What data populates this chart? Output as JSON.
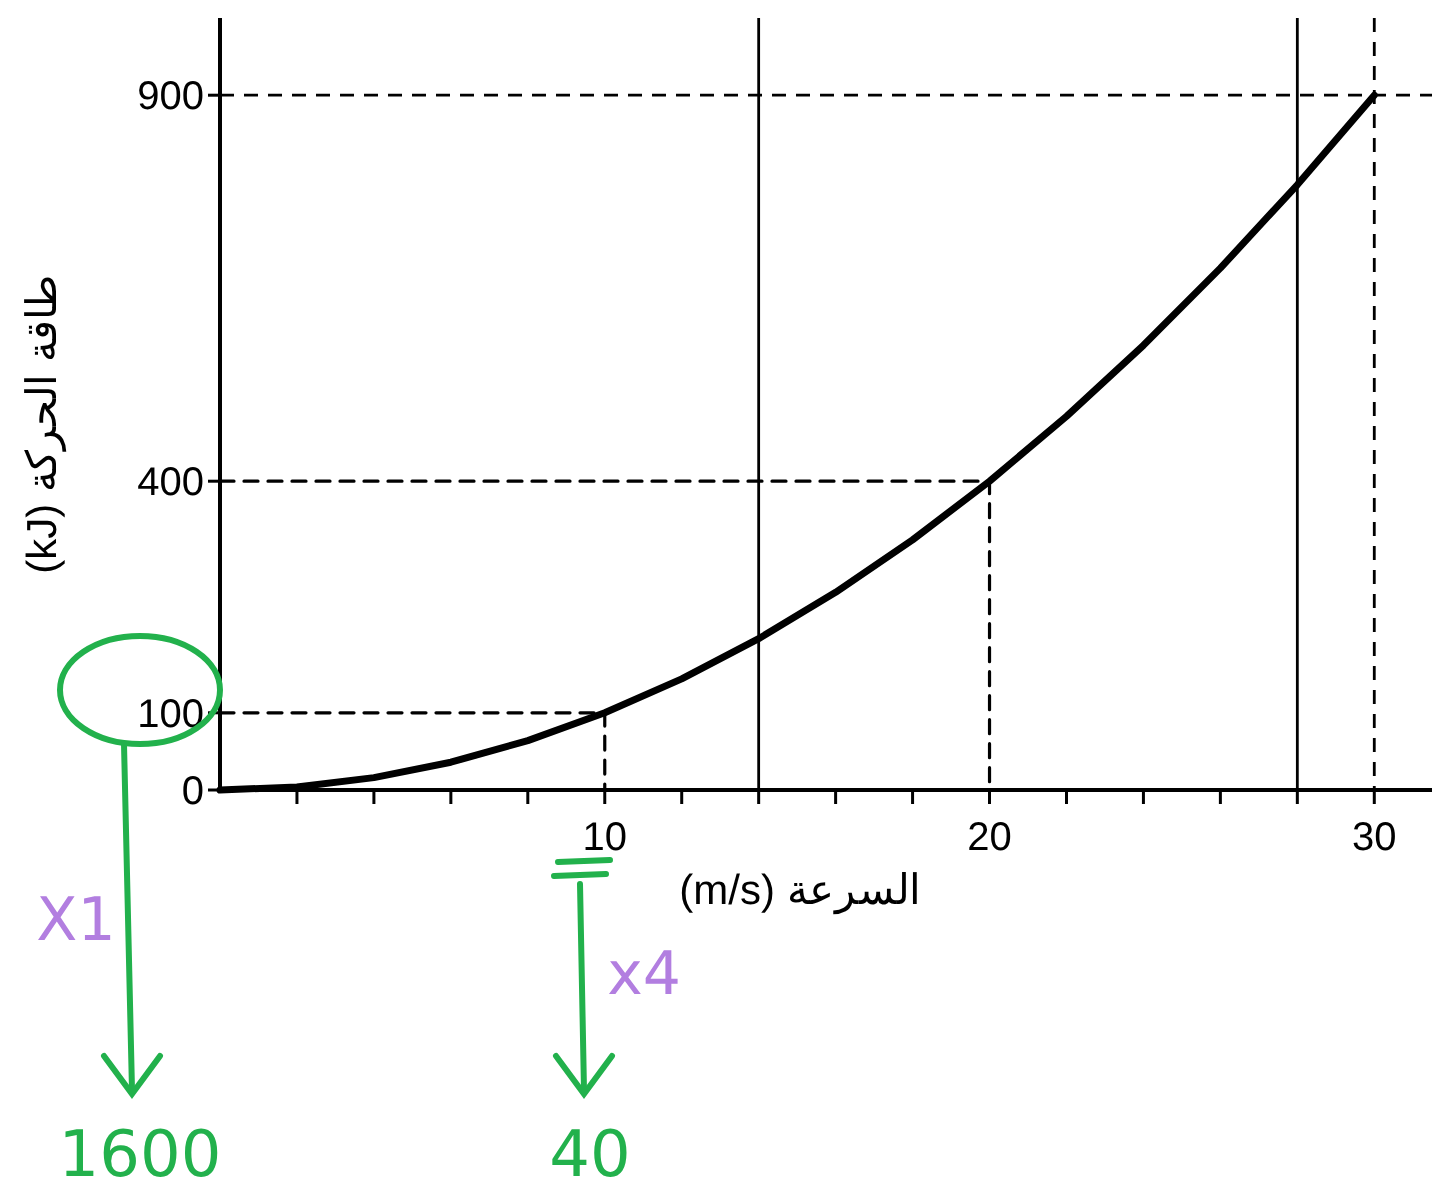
{
  "chart_data": {
    "type": "line",
    "xlabel": "السرعة (m/s)",
    "ylabel": "طاقة الحركة (kJ)",
    "xlim": [
      0,
      31.5
    ],
    "ylim": [
      0,
      1000
    ],
    "xticks": [
      {
        "value": 2,
        "label": null
      },
      {
        "value": 4,
        "label": null
      },
      {
        "value": 6,
        "label": null
      },
      {
        "value": 8,
        "label": null
      },
      10,
      {
        "value": 12,
        "label": null
      },
      {
        "value": 14,
        "label": null
      },
      {
        "value": 16,
        "label": null
      },
      {
        "value": 18,
        "label": null
      },
      20,
      {
        "value": 22,
        "label": null
      },
      {
        "value": 24,
        "label": null
      },
      {
        "value": 26,
        "label": null
      },
      {
        "value": 28,
        "label": null
      },
      30
    ],
    "yticks": [
      0,
      100,
      400,
      900
    ],
    "marker": "none",
    "grid": false,
    "series": [
      {
        "color": "#000000",
        "line_style": "solid",
        "x": [
          0,
          2,
          4,
          6,
          8,
          10,
          12,
          14,
          16,
          18,
          20,
          22,
          24,
          26,
          28,
          30
        ],
        "values": [
          0,
          4,
          16,
          36,
          64,
          100,
          144,
          196,
          256,
          324,
          400,
          484,
          576,
          676,
          784,
          900
        ]
      },
      {
        "color": "#000000",
        "line_style": "dashed",
        "x": [
          0,
          10,
          10
        ],
        "values": [
          100,
          100,
          0
        ]
      },
      {
        "color": "#000000",
        "line_style": "dashed",
        "x": [
          0,
          20,
          20
        ],
        "values": [
          400,
          400,
          0
        ]
      }
    ],
    "ref_lines": [
      {
        "axis": "y",
        "value": 900,
        "color": "#000000",
        "line_style": "dashed"
      },
      {
        "axis": "x",
        "value": 30,
        "color": "#000000",
        "line_style": "dashed"
      },
      {
        "axis": "x",
        "value": 14,
        "color": "#000000",
        "line_style": "solid"
      },
      {
        "axis": "x",
        "value": 28,
        "color": "#000000",
        "line_style": "solid"
      }
    ],
    "annotations": [
      "X1",
      "1600",
      "x4",
      "40"
    ]
  }
}
